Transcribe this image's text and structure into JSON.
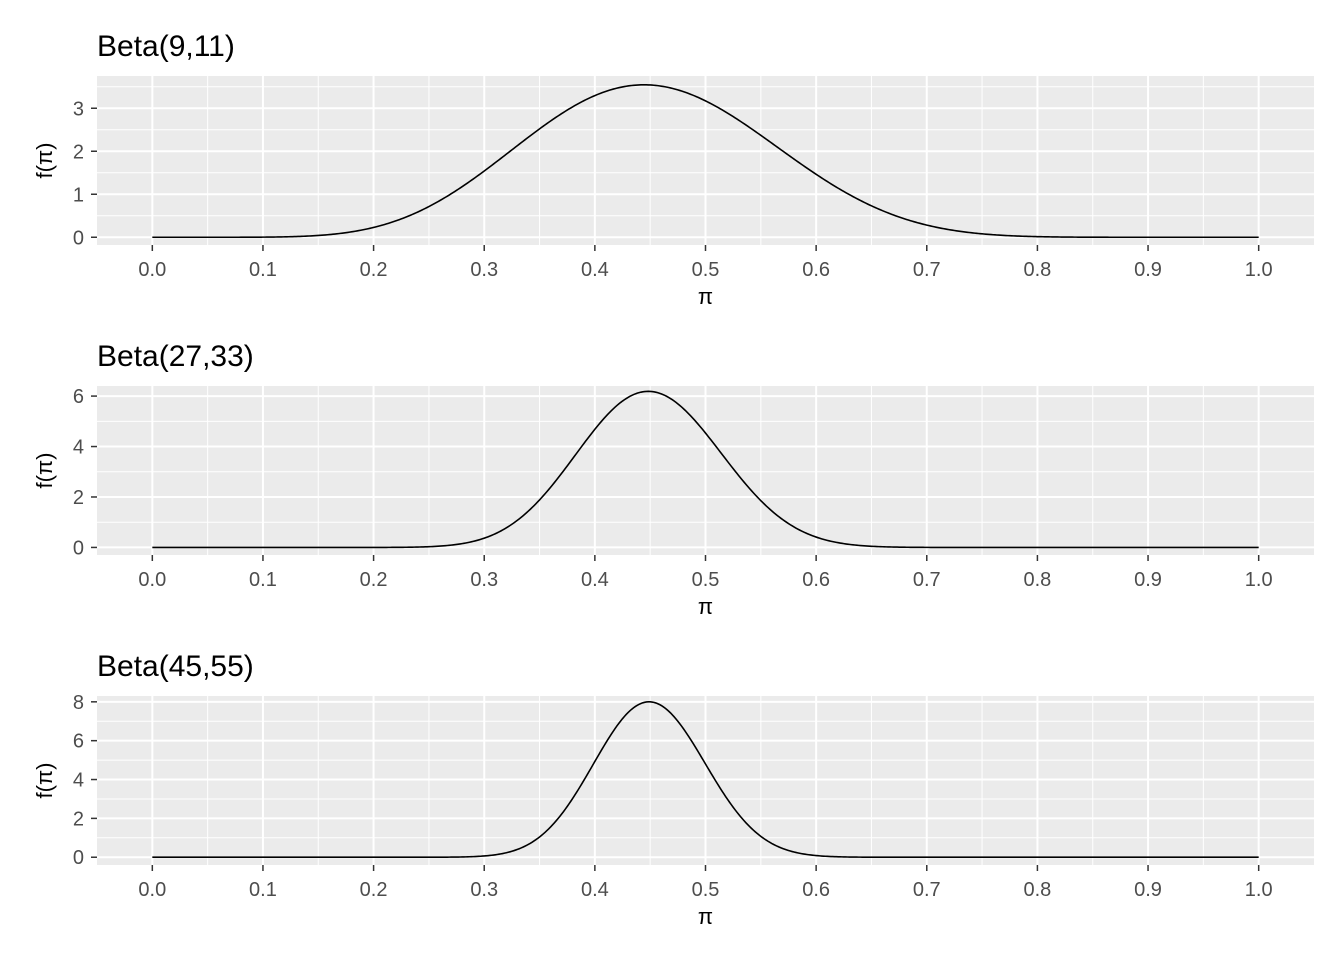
{
  "chart_data": [
    {
      "type": "line",
      "title": "Beta(9,11)",
      "alpha": 9,
      "beta": 11,
      "xlabel": "π",
      "ylabel": "f(π)",
      "xlim": [
        -0.05,
        1.05
      ],
      "ylim": [
        -0.18,
        3.75
      ],
      "x_ticks": [
        "0.0",
        "0.1",
        "0.2",
        "0.3",
        "0.4",
        "0.5",
        "0.6",
        "0.7",
        "0.8",
        "0.9",
        "1.0"
      ],
      "y_ticks": [
        "0",
        "1",
        "2",
        "3"
      ],
      "series": [
        {
          "x": [
            0.0,
            0.1,
            0.2,
            0.3,
            0.4,
            0.45,
            0.5,
            0.6,
            0.7,
            0.8,
            0.9,
            1.0
          ],
          "y": [
            0.0,
            0.01,
            0.22,
            1.55,
            3.4,
            3.56,
            3.2,
            1.47,
            0.3,
            0.02,
            0.0,
            0.0
          ]
        }
      ],
      "grid": true
    },
    {
      "type": "line",
      "title": "Beta(27,33)",
      "alpha": 27,
      "beta": 33,
      "xlabel": "π",
      "ylabel": "f(π)",
      "xlim": [
        -0.05,
        1.05
      ],
      "ylim": [
        -0.3,
        6.4
      ],
      "x_ticks": [
        "0.0",
        "0.1",
        "0.2",
        "0.3",
        "0.4",
        "0.5",
        "0.6",
        "0.7",
        "0.8",
        "0.9",
        "1.0"
      ],
      "y_ticks": [
        "0",
        "2",
        "4",
        "6"
      ],
      "series": [
        {
          "x": [
            0.0,
            0.2,
            0.3,
            0.35,
            0.4,
            0.45,
            0.5,
            0.55,
            0.6,
            0.7,
            1.0
          ],
          "y": [
            0.0,
            0.0,
            0.33,
            1.9,
            4.8,
            6.17,
            4.86,
            2.1,
            0.4,
            0.0,
            0.0
          ]
        }
      ],
      "grid": true
    },
    {
      "type": "line",
      "title": "Beta(45,55)",
      "alpha": 45,
      "beta": 55,
      "xlabel": "π",
      "ylabel": "f(π)",
      "xlim": [
        -0.05,
        1.05
      ],
      "ylim": [
        -0.4,
        8.3
      ],
      "x_ticks": [
        "0.0",
        "0.1",
        "0.2",
        "0.3",
        "0.4",
        "0.5",
        "0.6",
        "0.7",
        "0.8",
        "0.9",
        "1.0"
      ],
      "y_ticks": [
        "0",
        "2",
        "4",
        "6",
        "8"
      ],
      "series": [
        {
          "x": [
            0.0,
            0.3,
            0.35,
            0.4,
            0.45,
            0.5,
            0.55,
            0.6,
            1.0
          ],
          "y": [
            0.0,
            0.05,
            1.25,
            4.9,
            7.96,
            5.1,
            1.45,
            0.13,
            0.0
          ]
        }
      ],
      "grid": true
    }
  ]
}
